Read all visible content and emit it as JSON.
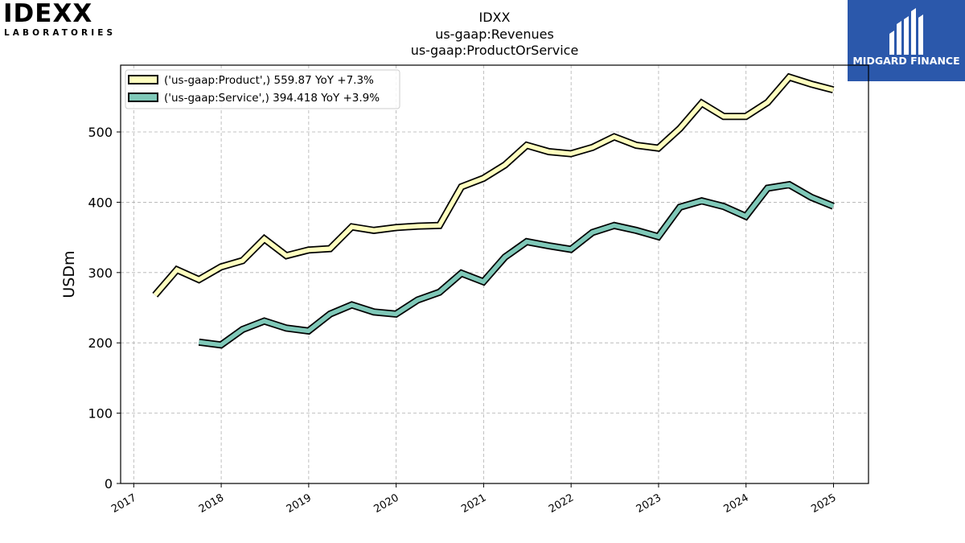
{
  "logos": {
    "left_main": "IDEXX",
    "left_sub": "LABORATORIES",
    "right_text": "MIDGARD FINANCE",
    "right_bg_color": "#2b58ab"
  },
  "chart_data": {
    "type": "line",
    "title_lines": [
      "IDXX",
      "us-gaap:Revenues",
      "us-gaap:ProductOrService"
    ],
    "ylabel": "USDm",
    "xlabel": "",
    "ylim": [
      0,
      595
    ],
    "xlim": [
      2016.85,
      2025.4
    ],
    "yticks": [
      0,
      100,
      200,
      300,
      400,
      500
    ],
    "xticks": [
      2017,
      2018,
      2019,
      2020,
      2021,
      2022,
      2023,
      2024,
      2025
    ],
    "grid": true,
    "legend_position": "top-left",
    "series": [
      {
        "name": "('us-gaap:Product',) 559.87 YoY +7.3%",
        "color": "#ffffbf",
        "x": [
          "2017-03-31",
          "2017-06-30",
          "2017-09-30",
          "2017-12-31",
          "2018-03-31",
          "2018-06-30",
          "2018-09-30",
          "2018-12-31",
          "2019-03-31",
          "2019-06-30",
          "2019-09-30",
          "2019-12-31",
          "2020-03-31",
          "2020-06-30",
          "2020-09-30",
          "2020-12-31",
          "2021-03-31",
          "2021-06-30",
          "2021-09-30",
          "2021-12-31",
          "2022-03-31",
          "2022-06-30",
          "2022-09-30",
          "2022-12-31",
          "2023-03-31",
          "2023-06-30",
          "2023-09-30",
          "2023-12-31",
          "2024-03-31",
          "2024-06-30",
          "2024-09-30",
          "2024-12-31"
        ],
        "values": [
          268,
          304,
          290,
          308,
          317,
          348,
          324,
          332,
          334,
          365,
          360,
          364,
          366,
          367,
          422,
          434,
          453,
          481,
          472,
          469,
          478,
          493,
          481,
          477,
          505,
          541,
          522,
          522,
          542,
          578,
          568,
          559.87
        ]
      },
      {
        "name": "('us-gaap:Service',) 394.418 YoY +3.9%",
        "color": "#7fc8b8",
        "x": [
          "2017-09-30",
          "2017-12-31",
          "2018-03-31",
          "2018-06-30",
          "2018-09-30",
          "2018-12-31",
          "2019-03-31",
          "2019-06-30",
          "2019-09-30",
          "2019-12-31",
          "2020-03-31",
          "2020-06-30",
          "2020-09-30",
          "2020-12-31",
          "2021-03-31",
          "2021-06-30",
          "2021-09-30",
          "2021-12-31",
          "2022-03-31",
          "2022-06-30",
          "2022-09-30",
          "2022-12-31",
          "2023-03-31",
          "2023-06-30",
          "2023-09-30",
          "2023-12-31",
          "2024-03-31",
          "2024-06-30",
          "2024-09-30",
          "2024-12-31"
        ],
        "values": [
          201,
          197,
          219,
          231,
          221,
          217,
          241,
          254,
          244,
          241,
          261,
          272,
          299,
          287,
          322,
          344,
          338,
          333,
          357,
          367,
          360,
          351,
          393,
          402,
          394,
          380,
          420,
          425,
          407,
          394.418
        ]
      }
    ]
  }
}
